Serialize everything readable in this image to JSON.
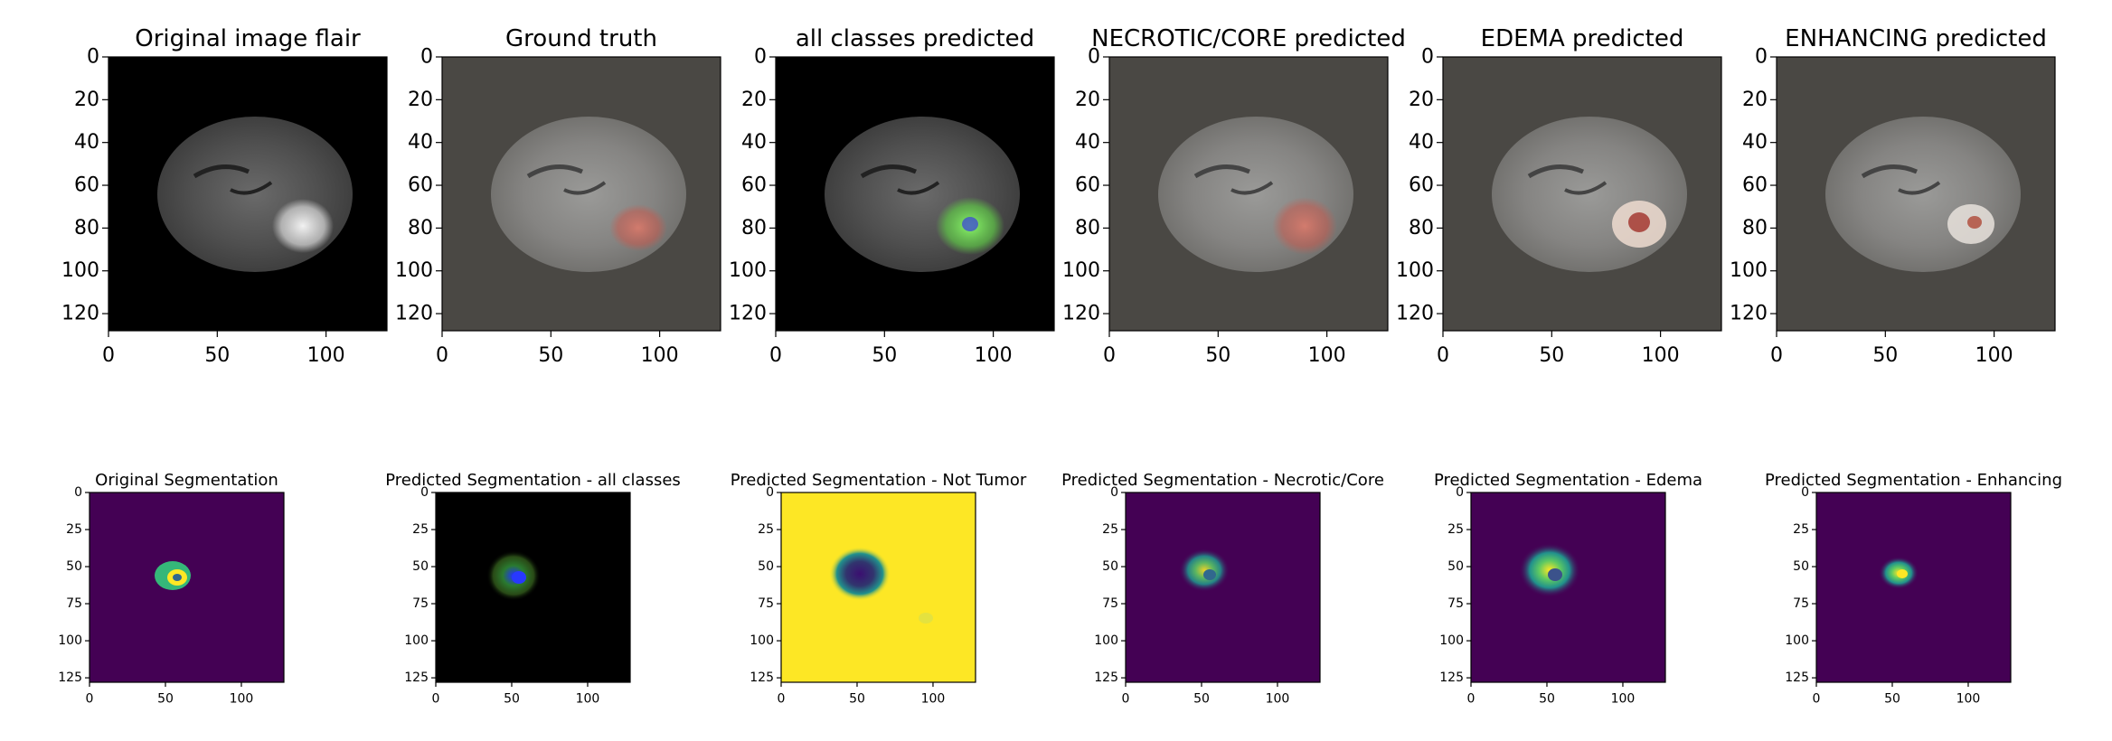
{
  "figure": {
    "row1": {
      "titles": [
        "Original image flair",
        "Ground truth",
        "all classes predicted",
        "NECROTIC/CORE predicted",
        "EDEMA predicted",
        "ENHANCING predicted"
      ],
      "y_ticks": [
        "0",
        "20",
        "40",
        "60",
        "80",
        "100",
        "120"
      ],
      "x_ticks": [
        "0",
        "50",
        "100"
      ],
      "axis_range": [
        0,
        128
      ]
    },
    "row2": {
      "titles": [
        "Original Segmentation",
        "Predicted Segmentation - all classes",
        "Predicted Segmentation - Not Tumor",
        "Predicted Segmentation - Necrotic/Core",
        "Predicted Segmentation - Edema",
        "Predicted Segmentation - Enhancing"
      ],
      "y_ticks": [
        "0",
        "25",
        "50",
        "75",
        "100",
        "125"
      ],
      "x_ticks": [
        "0",
        "50",
        "100"
      ],
      "axis_range": [
        0,
        128
      ]
    },
    "colors": {
      "black_bg": "#000000",
      "gray_bg": "#4a4844",
      "viridis_low": "#440154",
      "viridis_high": "#fde725",
      "edema_green": "#7ad151",
      "tumor_red": "#c85a4e"
    }
  }
}
